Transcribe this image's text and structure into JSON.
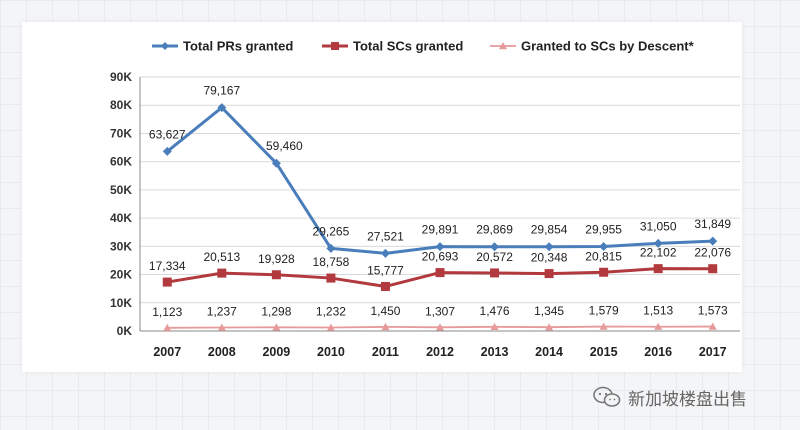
{
  "chart_data": {
    "type": "line",
    "categories": [
      "2007",
      "2008",
      "2009",
      "2010",
      "2011",
      "2012",
      "2013",
      "2014",
      "2015",
      "2016",
      "2017"
    ],
    "ylim": [
      0,
      90000
    ],
    "y_ticks": [
      {
        "value": 0,
        "label": "0K"
      },
      {
        "value": 10000,
        "label": "10K"
      },
      {
        "value": 20000,
        "label": "20K"
      },
      {
        "value": 30000,
        "label": "30K"
      },
      {
        "value": 40000,
        "label": "40K"
      },
      {
        "value": 50000,
        "label": "50K"
      },
      {
        "value": 60000,
        "label": "60K"
      },
      {
        "value": 70000,
        "label": "70K"
      },
      {
        "value": 80000,
        "label": "80K"
      },
      {
        "value": 90000,
        "label": "90K"
      }
    ],
    "grid": true,
    "legend_position": "top",
    "series": [
      {
        "name": "Total PRs granted",
        "color": "#4a7ebb",
        "marker": "diamond",
        "values": [
          63627,
          79167,
          59460,
          29265,
          27521,
          29891,
          29869,
          29854,
          29955,
          31050,
          31849
        ],
        "labels": [
          "63,627",
          "79,167",
          "59,460",
          "29,265",
          "27,521",
          "29,891",
          "29,869",
          "29,854",
          "29,955",
          "31,050",
          "31,849"
        ]
      },
      {
        "name": "Total SCs granted",
        "color": "#b23a3f",
        "marker": "square",
        "values": [
          17334,
          20513,
          19928,
          18758,
          15777,
          20693,
          20572,
          20348,
          20815,
          22102,
          22076
        ],
        "labels": [
          "17,334",
          "20,513",
          "19,928",
          "18,758",
          "15,777",
          "20,693",
          "20,572",
          "20,348",
          "20,815",
          "22,102",
          "22,076"
        ]
      },
      {
        "name": "Granted to SCs by Descent*",
        "color": "#e79a9a",
        "marker": "triangle",
        "values": [
          1123,
          1237,
          1298,
          1232,
          1450,
          1307,
          1476,
          1345,
          1579,
          1513,
          1573
        ],
        "labels": [
          "1,123",
          "1,237",
          "1,298",
          "1,232",
          "1,450",
          "1,307",
          "1,476",
          "1,345",
          "1,579",
          "1,513",
          "1,573"
        ]
      }
    ]
  },
  "watermark": {
    "text": "新加坡楼盘出售",
    "icon": "wechat-icon"
  }
}
